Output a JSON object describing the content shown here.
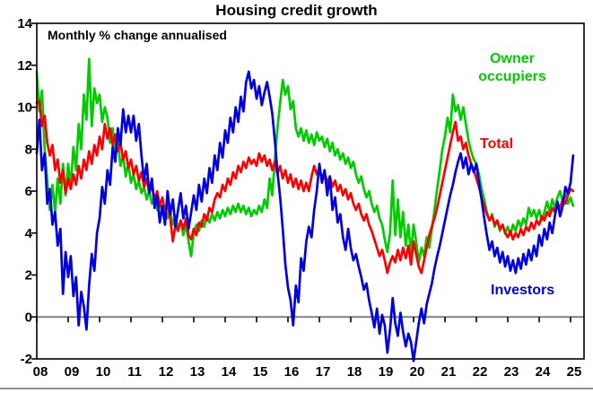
{
  "title": "Housing credit growth",
  "subtitle": "Monthly % change annualised",
  "legend": {
    "owner_occupiers_line1": "Owner",
    "owner_occupiers_line2": "occupiers",
    "total": "Total",
    "investors": "Investors"
  },
  "colors": {
    "owner_occupiers": "#00cc00",
    "total": "#ff0000",
    "investors": "#0000e0",
    "zero_line": "#808080",
    "frame": "#000000",
    "bottom_rule": "#909090"
  },
  "chart_data": {
    "type": "line",
    "title": "Housing credit growth",
    "subtitle": "Monthly % change annualised",
    "x_start_year": 2008,
    "x_step_months": 1,
    "xlim": [
      2008.0,
      2025.45
    ],
    "ylim": [
      -2,
      14
    ],
    "grid": "zero-line-only",
    "legend_position": "inline-labels",
    "yticks": [
      14,
      12,
      10,
      8,
      6,
      4,
      2,
      0,
      -2
    ],
    "ytick_labels": [
      "14",
      "12",
      "10",
      "8",
      "6",
      "4",
      "2",
      "0",
      "-2"
    ],
    "xtick_labels": [
      "08",
      "09",
      "10",
      "11",
      "12",
      "13",
      "14",
      "15",
      "16",
      "17",
      "18",
      "19",
      "20",
      "21",
      "22",
      "23",
      "24",
      "25"
    ],
    "series": [
      {
        "name": "Owner occupiers",
        "color": "#00cc00",
        "values": [
          11.7,
          9.8,
          10.8,
          8.0,
          6.5,
          5.1,
          6.3,
          5.0,
          6.6,
          5.4,
          7.3,
          5.8,
          7.3,
          6.2,
          8.1,
          7.0,
          9.2,
          8.0,
          10.6,
          9.4,
          12.3,
          9.1,
          10.9,
          10.2,
          10.6,
          9.3,
          10.0,
          9.5,
          8.3,
          9.0,
          7.8,
          8.4,
          7.2,
          7.7,
          6.7,
          7.3,
          6.4,
          6.8,
          6.1,
          6.5,
          5.9,
          6.2,
          5.6,
          6.0,
          5.4,
          5.7,
          5.1,
          5.5,
          4.9,
          5.3,
          4.7,
          5.0,
          4.4,
          4.8,
          4.2,
          4.6,
          3.9,
          4.4,
          3.6,
          2.9,
          4.0,
          4.4,
          4.1,
          4.6,
          4.3,
          4.8,
          4.5,
          4.9,
          4.6,
          5.0,
          4.7,
          5.1,
          4.8,
          5.2,
          4.9,
          5.3,
          5.0,
          5.4,
          5.0,
          5.3,
          4.9,
          5.2,
          4.8,
          5.1,
          4.9,
          5.3,
          5.0,
          5.6,
          5.2,
          6.6,
          5.8,
          7.5,
          9.0,
          10.2,
          11.3,
          10.6,
          11.0,
          9.9,
          10.3,
          9.0,
          8.6,
          9.0,
          8.4,
          8.9,
          8.3,
          8.7,
          8.2,
          8.8,
          8.4,
          8.6,
          8.1,
          8.5,
          7.9,
          8.3,
          7.7,
          8.0,
          7.5,
          7.8,
          7.3,
          7.6,
          7.1,
          7.4,
          6.8,
          6.4,
          6.7,
          6.1,
          5.7,
          6.0,
          5.4,
          5.0,
          5.3,
          4.7,
          4.4,
          3.7,
          3.1,
          4.0,
          6.5,
          3.9,
          5.6,
          3.8,
          5.0,
          3.4,
          4.4,
          3.0,
          4.4,
          3.6,
          2.6,
          3.3,
          2.9,
          3.8,
          3.3,
          4.2,
          5.1,
          6.1,
          7.0,
          8.0,
          8.6,
          9.5,
          8.8,
          10.6,
          9.8,
          10.1,
          9.4,
          10.0,
          9.2,
          8.4,
          7.9,
          7.5,
          7.3,
          6.8,
          6.1,
          5.6,
          5.0,
          4.6,
          4.9,
          4.3,
          4.6,
          4.1,
          4.4,
          4.0,
          4.3,
          3.9,
          4.4,
          4.1,
          4.6,
          4.3,
          4.7,
          4.4,
          5.2,
          4.8,
          5.1,
          4.7,
          5.1,
          4.6,
          5.0,
          5.5,
          5.0,
          5.6,
          5.2,
          5.7,
          6.0,
          5.5,
          5.9,
          5.4,
          5.7,
          5.3
        ]
      },
      {
        "name": "Total",
        "color": "#ff0000",
        "values": [
          10.2,
          10.3,
          9.1,
          9.6,
          8.3,
          7.7,
          8.2,
          7.0,
          7.5,
          6.4,
          7.0,
          5.9,
          6.6,
          6.1,
          6.8,
          6.3,
          7.2,
          6.6,
          7.5,
          7.0,
          7.9,
          7.3,
          8.2,
          7.7,
          8.6,
          8.0,
          9.2,
          8.5,
          9.0,
          8.2,
          8.7,
          7.9,
          8.3,
          7.5,
          7.9,
          7.1,
          7.5,
          6.8,
          7.2,
          6.5,
          6.9,
          6.2,
          6.6,
          5.9,
          6.3,
          5.6,
          6.0,
          5.3,
          5.7,
          5.0,
          5.4,
          4.7,
          3.6,
          4.4,
          4.1,
          4.6,
          4.2,
          4.7,
          3.9,
          3.7,
          4.2,
          3.9,
          4.5,
          4.3,
          4.9,
          4.6,
          5.2,
          5.0,
          5.6,
          5.9,
          5.7,
          6.3,
          6.0,
          6.6,
          6.3,
          6.9,
          6.6,
          7.2,
          6.9,
          7.4,
          7.1,
          7.6,
          7.3,
          7.5,
          7.2,
          7.8,
          7.4,
          7.7,
          7.2,
          7.5,
          7.0,
          7.4,
          6.8,
          7.2,
          6.6,
          7.0,
          6.4,
          6.8,
          6.2,
          6.6,
          6.1,
          6.5,
          6.0,
          6.4,
          6.0,
          6.7,
          7.2,
          6.8,
          7.1,
          6.6,
          6.9,
          6.4,
          6.7,
          6.2,
          6.5,
          6.0,
          6.3,
          5.8,
          6.1,
          5.6,
          5.9,
          5.4,
          5.1,
          5.4,
          4.9,
          4.6,
          4.9,
          4.4,
          4.1,
          3.7,
          3.3,
          2.9,
          3.2,
          2.7,
          2.1,
          2.6,
          2.9,
          2.6,
          3.2,
          2.7,
          3.3,
          2.8,
          3.4,
          2.5,
          3.6,
          3.0,
          2.4,
          2.1,
          2.7,
          3.3,
          3.9,
          4.3,
          4.7,
          5.2,
          5.8,
          6.4,
          7.0,
          7.6,
          8.2,
          8.8,
          9.3,
          8.4,
          8.6,
          8.0,
          8.3,
          7.7,
          7.3,
          7.0,
          6.6,
          6.2,
          5.7,
          5.3,
          4.9,
          4.6,
          4.8,
          4.4,
          4.6,
          4.2,
          4.4,
          4.0,
          3.8,
          4.1,
          3.7,
          4.0,
          3.8,
          4.2,
          3.9,
          4.3,
          4.1,
          4.5,
          4.2,
          4.6,
          4.4,
          4.8,
          4.6,
          5.0,
          4.8,
          5.2,
          5.0,
          5.4,
          5.2,
          5.6,
          5.4,
          5.8,
          6.1,
          6.0
        ]
      },
      {
        "name": "Investors",
        "color": "#0000e0",
        "values": [
          7.8,
          9.4,
          7.0,
          7.8,
          5.4,
          6.1,
          4.4,
          5.0,
          3.4,
          4.2,
          1.1,
          3.1,
          1.9,
          2.9,
          1.0,
          1.9,
          -0.4,
          1.2,
          0.5,
          -0.6,
          1.5,
          3.0,
          2.2,
          4.0,
          4.7,
          6.2,
          5.4,
          7.0,
          6.3,
          8.1,
          7.4,
          9.0,
          8.2,
          9.9,
          8.8,
          9.6,
          8.8,
          9.6,
          8.4,
          9.2,
          7.7,
          6.5,
          7.3,
          5.9,
          6.6,
          5.2,
          5.8,
          4.5,
          5.3,
          4.4,
          6.0,
          4.9,
          5.6,
          4.3,
          5.1,
          5.9,
          4.7,
          5.3,
          4.2,
          5.0,
          5.8,
          5.1,
          6.3,
          5.5,
          6.6,
          5.9,
          7.1,
          6.4,
          7.7,
          7.0,
          8.3,
          7.6,
          8.9,
          8.3,
          9.5,
          8.8,
          10.0,
          9.3,
          10.5,
          9.8,
          11.2,
          11.7,
          10.9,
          11.3,
          10.4,
          11.0,
          10.1,
          10.7,
          11.2,
          10.5,
          9.7,
          8.4,
          6.9,
          5.7,
          4.2,
          2.5,
          1.4,
          0.8,
          -0.4,
          1.5,
          0.7,
          2.8,
          2.2,
          3.6,
          4.3,
          3.8,
          5.1,
          6.0,
          7.3,
          6.4,
          7.0,
          5.8,
          6.7,
          5.1,
          5.7,
          4.5,
          4.9,
          3.8,
          3.2,
          4.2,
          3.3,
          2.7,
          3.0,
          2.4,
          1.9,
          1.3,
          1.6,
          0.8,
          0.2,
          -0.5,
          0.4,
          -0.8,
          0.1,
          -0.4,
          -1.7,
          -0.6,
          0.9,
          -0.3,
          -0.9,
          0.2,
          -0.7,
          -1.4,
          -0.8,
          -1.2,
          -2.1,
          -1.2,
          -0.3,
          0.4,
          -0.3,
          0.6,
          1.1,
          1.6,
          2.3,
          2.9,
          3.4,
          4.0,
          4.6,
          5.2,
          5.8,
          6.3,
          6.9,
          7.4,
          7.8,
          7.1,
          7.6,
          6.8,
          7.3,
          6.9,
          7.3,
          6.4,
          5.6,
          4.7,
          3.9,
          3.2,
          3.6,
          2.9,
          3.3,
          2.6,
          3.1,
          2.4,
          2.9,
          2.2,
          2.7,
          2.1,
          2.8,
          2.3,
          3.0,
          2.5,
          3.2,
          2.7,
          3.4,
          2.9,
          3.9,
          3.4,
          4.2,
          3.7,
          4.5,
          4.0,
          4.8,
          5.5,
          4.8,
          5.3,
          6.2,
          5.9,
          6.4,
          7.7
        ]
      }
    ]
  }
}
